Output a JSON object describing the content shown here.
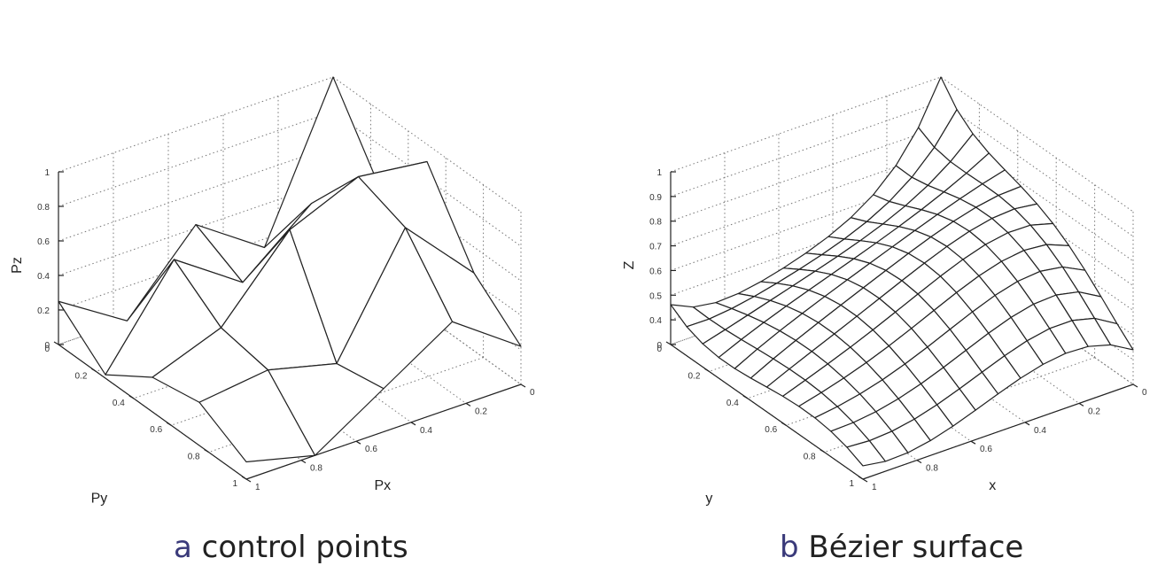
{
  "panels": [
    {
      "letter": "a",
      "caption": "control points",
      "xlabel": "Px",
      "ylabel": "Py",
      "zlabel": "Pz",
      "x_ticks": [
        "0",
        "0.2",
        "0.4",
        "0.6",
        "0.8",
        "1"
      ],
      "y_ticks": [
        "0",
        "0.2",
        "0.4",
        "0.6",
        "0.8",
        "1"
      ],
      "z_ticks": [
        "0",
        "0.2",
        "0.4",
        "0.6",
        "0.8",
        "1"
      ]
    },
    {
      "letter": "b",
      "caption": "Bézier surface",
      "xlabel": "x",
      "ylabel": "y",
      "zlabel": "Z",
      "x_ticks": [
        "0",
        "0.2",
        "0.4",
        "0.6",
        "0.8",
        "1"
      ],
      "y_ticks": [
        "0",
        "0.2",
        "0.4",
        "0.6",
        "0.8",
        "1"
      ],
      "z_ticks": [
        "0",
        "0.4",
        "0.5",
        "0.6",
        "0.7",
        "0.8",
        "0.9",
        "1"
      ]
    }
  ],
  "chart_data": [
    {
      "type": "surface",
      "description_free": true,
      "x": [
        0,
        0.25,
        0.5,
        0.75,
        1
      ],
      "y": [
        0,
        0.25,
        0.5,
        0.75,
        1
      ],
      "z": [
        [
          1.0,
          0.55,
          0.9,
          0.45,
          0.22
        ],
        [
          0.15,
          0.6,
          0.95,
          0.85,
          0.5
        ],
        [
          0.42,
          0.28,
          0.78,
          0.2,
          0.25
        ],
        [
          0.0,
          0.55,
          0.35,
          0.3,
          0.0
        ],
        [
          0.25,
          0.02,
          0.2,
          0.25,
          0.1
        ]
      ],
      "xlabel": "Px",
      "ylabel": "Py",
      "zlabel": "Pz",
      "xlim": [
        0,
        1
      ],
      "ylim": [
        0,
        1
      ],
      "zlim": [
        0,
        1
      ]
    },
    {
      "type": "surface",
      "x": [
        0,
        0.0833,
        0.1667,
        0.25,
        0.3333,
        0.4167,
        0.5,
        0.5833,
        0.6667,
        0.75,
        0.8333,
        0.9167,
        1
      ],
      "y": [
        0,
        0.0833,
        0.1667,
        0.25,
        0.3333,
        0.4167,
        0.5,
        0.5833,
        0.6667,
        0.75,
        0.8333,
        0.9167,
        1
      ],
      "xlabel": "x",
      "ylabel": "y",
      "zlabel": "Z",
      "xlim": [
        0,
        1
      ],
      "ylim": [
        0,
        1
      ],
      "zlim": [
        0.3,
        1
      ]
    }
  ]
}
